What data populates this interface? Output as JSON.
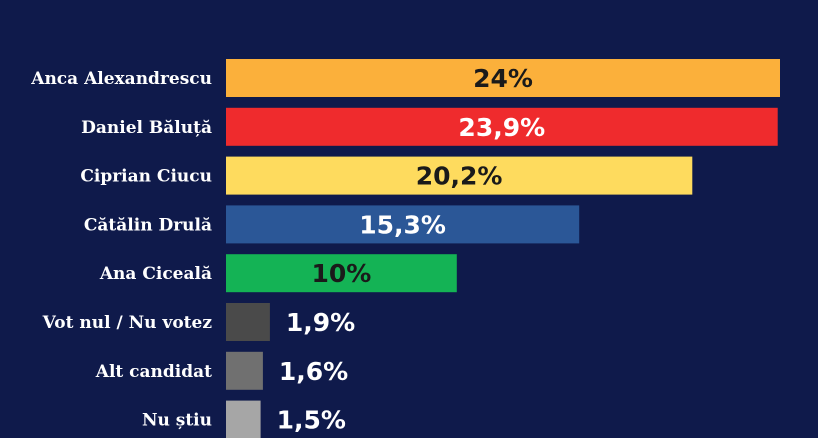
{
  "colors": {
    "background": "#0f1a4b"
  },
  "chart_data": {
    "type": "bar",
    "orientation": "horizontal",
    "title": "",
    "xlabel": "",
    "ylabel": "",
    "xlim": [
      0,
      24
    ],
    "grid": false,
    "legend": "none",
    "categories": [
      "Anca Alexandrescu",
      "Daniel Băluță",
      "Ciprian Ciucu",
      "Cătălin Drulă",
      "Ana Ciceală",
      "Vot nul / Nu votez",
      "Alt candidat",
      "Nu știu"
    ],
    "values": [
      24,
      23.9,
      20.2,
      15.3,
      10,
      1.9,
      1.6,
      1.5
    ],
    "value_labels": [
      "24%",
      "23,9%",
      "20,2%",
      "15,3%",
      "10%",
      "1,9%",
      "1,6%",
      "1,5%"
    ],
    "bar_colors": [
      "#fbb03b",
      "#ef2b2d",
      "#fedb5e",
      "#2b5797",
      "#14b355",
      "#4a4a4a",
      "#707070",
      "#a6a6a6"
    ],
    "label_colors": [
      "#1a1a1a",
      "#ffffff",
      "#1a1a1a",
      "#ffffff",
      "#1a1a1a",
      "#ffffff",
      "#ffffff",
      "#ffffff"
    ]
  }
}
